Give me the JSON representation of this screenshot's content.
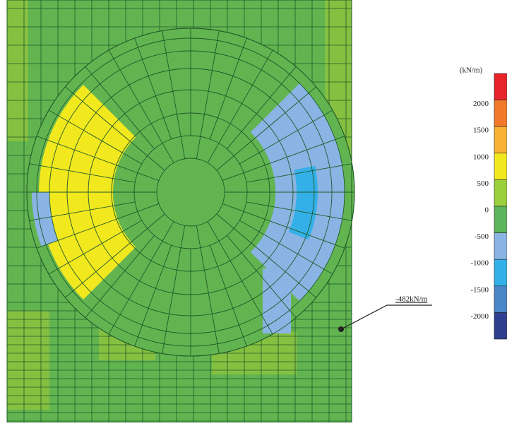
{
  "legend": {
    "unit": "(kN/m)",
    "ticks": [
      "2000",
      "1500",
      "1000",
      "500",
      "0",
      "-500",
      "-1000",
      "-1500",
      "-2000"
    ]
  },
  "annotation": {
    "label": "-482kN/m"
  }
}
